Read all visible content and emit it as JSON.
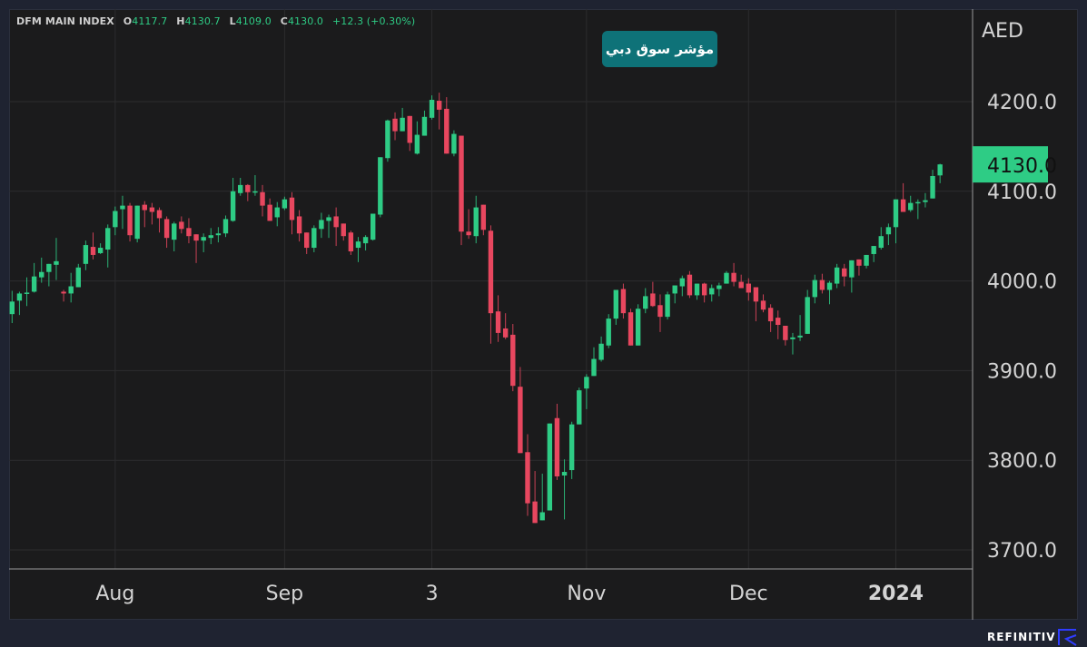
{
  "header": {
    "symbol": "DFM MAIN INDEX",
    "open_label": "O",
    "open": "4117.7",
    "high_label": "H",
    "high": "4130.7",
    "low_label": "L",
    "low": "4109.0",
    "close_label": "C",
    "close": "4130.0",
    "change": "+12.3 (+0.30%)"
  },
  "badge": {
    "text": "مؤشر سوق دبي"
  },
  "brand": {
    "text": "REFINITIV"
  },
  "colors": {
    "up": "#2ecc85",
    "down": "#e8475f",
    "badge": "#0e7278",
    "last_price_bg": "#2ecc85",
    "background": "#1b1b1c"
  },
  "chart_data": {
    "type": "candlestick",
    "title": "DFM MAIN INDEX",
    "currency": "AED",
    "ylim": [
      3690,
      4300
    ],
    "yticks": [
      4200,
      4100,
      4000,
      3900,
      3800,
      3700
    ],
    "ytick_labels": [
      "4200.0",
      "4100.0",
      "4000.0",
      "3900.0",
      "3800.0",
      "3700.0"
    ],
    "last_price": 4130.0,
    "last_price_label": "4130.0",
    "grid": true,
    "xticks": [
      {
        "label": "Aug",
        "index": 14
      },
      {
        "label": "Sep",
        "index": 37
      },
      {
        "label": "3",
        "index": 57
      },
      {
        "label": "Nov",
        "index": 78
      },
      {
        "label": "Dec",
        "index": 100
      },
      {
        "label": "2024",
        "index": 120
      }
    ],
    "ohlc": [
      [
        3963,
        3989,
        3953,
        3977
      ],
      [
        3978,
        3988,
        3962,
        3986
      ],
      [
        3986,
        4004,
        3972,
        3987
      ],
      [
        3988,
        4020,
        3987,
        4005
      ],
      [
        4004,
        4026,
        3998,
        4010
      ],
      [
        4010,
        4019,
        3994,
        4019
      ],
      [
        4018,
        4048,
        4001,
        4022
      ],
      [
        3988,
        3990,
        3977,
        3986
      ],
      [
        3986,
        4009,
        3976,
        3994
      ],
      [
        3993,
        4019,
        3993,
        4015
      ],
      [
        4019,
        4045,
        4012,
        4040
      ],
      [
        4038,
        4054,
        4024,
        4029
      ],
      [
        4031,
        4042,
        4030,
        4037
      ],
      [
        4035,
        4063,
        4015,
        4059
      ],
      [
        4060,
        4083,
        4051,
        4078
      ],
      [
        4080,
        4095,
        4058,
        4084
      ],
      [
        4084,
        4087,
        4044,
        4051
      ],
      [
        4047,
        4084,
        4043,
        4084
      ],
      [
        4085,
        4089,
        4060,
        4079
      ],
      [
        4082,
        4087,
        4063,
        4077
      ],
      [
        4079,
        4082,
        4054,
        4070
      ],
      [
        4069,
        4072,
        4037,
        4048
      ],
      [
        4046,
        4066,
        4033,
        4064
      ],
      [
        4066,
        4072,
        4053,
        4058
      ],
      [
        4059,
        4070,
        4042,
        4050
      ],
      [
        4052,
        4052,
        4020,
        4045
      ],
      [
        4045,
        4053,
        4032,
        4049
      ],
      [
        4048,
        4059,
        4041,
        4051
      ],
      [
        4051,
        4060,
        4043,
        4053
      ],
      [
        4053,
        4073,
        4049,
        4069
      ],
      [
        4067,
        4115,
        4066,
        4100
      ],
      [
        4098,
        4115,
        4095,
        4107
      ],
      [
        4107,
        4108,
        4089,
        4099
      ],
      [
        4099,
        4118,
        4095,
        4100
      ],
      [
        4099,
        4107,
        4072,
        4084
      ],
      [
        4085,
        4092,
        4067,
        4067
      ],
      [
        4071,
        4088,
        4061,
        4082
      ],
      [
        4081,
        4094,
        4079,
        4091
      ],
      [
        4093,
        4099,
        4052,
        4068
      ],
      [
        4072,
        4079,
        4044,
        4053
      ],
      [
        4054,
        4054,
        4030,
        4037
      ],
      [
        4037,
        4062,
        4032,
        4059
      ],
      [
        4058,
        4076,
        4048,
        4068
      ],
      [
        4067,
        4074,
        4048,
        4071
      ],
      [
        4072,
        4082,
        4039,
        4060
      ],
      [
        4064,
        4064,
        4045,
        4050
      ],
      [
        4054,
        4056,
        4029,
        4033
      ],
      [
        4037,
        4049,
        4021,
        4044
      ],
      [
        4042,
        4051,
        4034,
        4049
      ],
      [
        4046,
        4075,
        4045,
        4075
      ],
      [
        4074,
        4138,
        4071,
        4138
      ],
      [
        4137,
        4180,
        4133,
        4179
      ],
      [
        4181,
        4188,
        4157,
        4167
      ],
      [
        4167,
        4193,
        4167,
        4182
      ],
      [
        4184,
        4184,
        4145,
        4154
      ],
      [
        4142,
        4178,
        4141,
        4163
      ],
      [
        4162,
        4190,
        4162,
        4183
      ],
      [
        4182,
        4207,
        4180,
        4202
      ],
      [
        4201,
        4210,
        4169,
        4191
      ],
      [
        4192,
        4205,
        4142,
        4142
      ],
      [
        4142,
        4168,
        4139,
        4164
      ],
      [
        4162,
        4162,
        4040,
        4055
      ],
      [
        4055,
        4080,
        4047,
        4051
      ],
      [
        4050,
        4095,
        4042,
        4082
      ],
      [
        4085,
        4085,
        4051,
        4057
      ],
      [
        4056,
        4062,
        3930,
        3964
      ],
      [
        3966,
        3984,
        3932,
        3942
      ],
      [
        3947,
        3964,
        3935,
        3937
      ],
      [
        3940,
        3952,
        3877,
        3883
      ],
      [
        3882,
        3904,
        3808,
        3808
      ],
      [
        3809,
        3829,
        3738,
        3752
      ],
      [
        3754,
        3788,
        3730,
        3730
      ],
      [
        3733,
        3785,
        3733,
        3742
      ],
      [
        3744,
        3841,
        3744,
        3841
      ],
      [
        3847,
        3863,
        3778,
        3782
      ],
      [
        3783,
        3801,
        3734,
        3787
      ],
      [
        3789,
        3843,
        3779,
        3840
      ],
      [
        3840,
        3881,
        3840,
        3878
      ],
      [
        3880,
        3896,
        3857,
        3893
      ],
      [
        3894,
        3926,
        3894,
        3913
      ],
      [
        3912,
        3938,
        3910,
        3930
      ],
      [
        3928,
        3963,
        3925,
        3958
      ],
      [
        3958,
        3990,
        3951,
        3990
      ],
      [
        3991,
        3997,
        3958,
        3964
      ],
      [
        3965,
        3969,
        3928,
        3928
      ],
      [
        3928,
        3974,
        3928,
        3969
      ],
      [
        3969,
        3992,
        3964,
        3983
      ],
      [
        3986,
        3999,
        3971,
        3972
      ],
      [
        3973,
        3985,
        3943,
        3960
      ],
      [
        3960,
        3988,
        3957,
        3985
      ],
      [
        3986,
        3995,
        3975,
        3995
      ],
      [
        3994,
        4006,
        3983,
        4003
      ],
      [
        4007,
        4011,
        3981,
        3984
      ],
      [
        3984,
        3997,
        3979,
        3997
      ],
      [
        3997,
        3998,
        3976,
        3984
      ],
      [
        3985,
        3996,
        3977,
        3992
      ],
      [
        3991,
        3998,
        3983,
        3995
      ],
      [
        3997,
        4011,
        3997,
        4009
      ],
      [
        4009,
        4020,
        3994,
        3999
      ],
      [
        3999,
        4007,
        3992,
        3992
      ],
      [
        3997,
        4003,
        3978,
        3987
      ],
      [
        3993,
        3993,
        3955,
        3977
      ],
      [
        3978,
        3985,
        3965,
        3968
      ],
      [
        3970,
        3974,
        3943,
        3955
      ],
      [
        3959,
        3967,
        3935,
        3951
      ],
      [
        3950,
        3950,
        3928,
        3934
      ],
      [
        3935,
        3942,
        3918,
        3937
      ],
      [
        3937,
        3962,
        3933,
        3939
      ],
      [
        3941,
        3990,
        3941,
        3982
      ],
      [
        3982,
        4007,
        3975,
        4001
      ],
      [
        4001,
        4008,
        3986,
        3990
      ],
      [
        3990,
        4000,
        3974,
        3998
      ],
      [
        3997,
        4019,
        3992,
        4015
      ],
      [
        4014,
        4019,
        3994,
        4005
      ],
      [
        4004,
        4023,
        3987,
        4023
      ],
      [
        4024,
        4024,
        4006,
        4017
      ],
      [
        4017,
        4029,
        4014,
        4029
      ],
      [
        4030,
        4039,
        4021,
        4039
      ],
      [
        4037,
        4060,
        4035,
        4050
      ],
      [
        4052,
        4064,
        4040,
        4060
      ],
      [
        4060,
        4091,
        4042,
        4091
      ],
      [
        4091,
        4109,
        4077,
        4077
      ],
      [
        4079,
        4095,
        4077,
        4087
      ],
      [
        4087,
        4091,
        4069,
        4088
      ],
      [
        4088,
        4098,
        4082,
        4090
      ],
      [
        4092,
        4124,
        4092,
        4117
      ],
      [
        4117.7,
        4130.7,
        4109.0,
        4130.0
      ]
    ]
  }
}
